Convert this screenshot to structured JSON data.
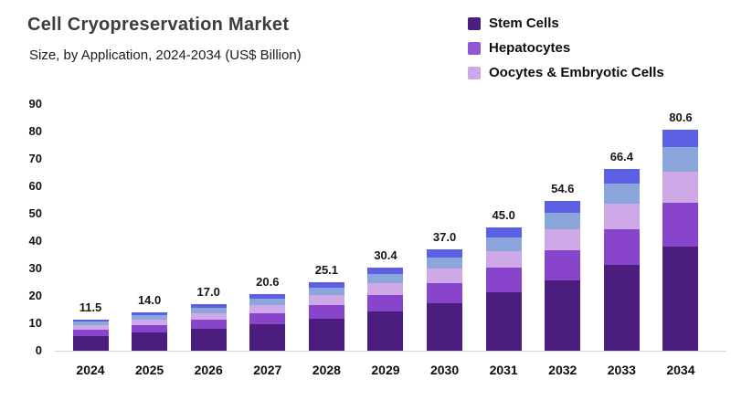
{
  "header": {
    "title": "Cell Cryopreservation Market",
    "subtitle": "Size, by Application, 2024-2034 (US$ Billion)"
  },
  "legend": [
    {
      "label": "Stem Cells",
      "color": "#4a1d7f"
    },
    {
      "label": "Hepatocytes",
      "color": "#9257d2"
    },
    {
      "label": "Oocytes & Embryotic Cells",
      "color": "#cfa8e8"
    }
  ],
  "colors": {
    "background": "#ffffff",
    "title_text": "#3e3c40",
    "label_text": "#111111",
    "baseline": "#d5d5d5"
  },
  "chart_data": {
    "type": "bar",
    "stacked": true,
    "title": "Cell Cryopreservation Market",
    "subtitle": "Size, by Application, 2024-2034 (US$ Billion)",
    "xlabel": "",
    "ylabel": "",
    "ylim": [
      0,
      90
    ],
    "yticks": [
      0,
      10,
      20,
      30,
      40,
      50,
      60,
      70,
      80,
      90
    ],
    "grid": false,
    "legend_position": "top-right",
    "categories": [
      "2024",
      "2025",
      "2026",
      "2027",
      "2028",
      "2029",
      "2030",
      "2031",
      "2032",
      "2033",
      "2034"
    ],
    "totals": [
      11.5,
      14.0,
      17.0,
      20.6,
      25.1,
      30.4,
      37.0,
      45.0,
      54.6,
      66.4,
      80.6
    ],
    "bar_total_labels": [
      "11.5",
      "14.0",
      "17.0",
      "20.6",
      "25.1",
      "30.4",
      "37.0",
      "45.0",
      "54.6",
      "66.4",
      "80.6"
    ],
    "series": [
      {
        "name": "Stem Cells",
        "color": "#4a1d7f",
        "values": [
          5.4,
          6.6,
          8.0,
          9.7,
          11.8,
          14.3,
          17.4,
          21.2,
          25.7,
          31.2,
          37.9
        ]
      },
      {
        "name": "Hepatocytes",
        "color": "#8944cc",
        "values": [
          2.3,
          2.8,
          3.4,
          4.1,
          5.0,
          6.1,
          7.4,
          9.0,
          10.9,
          13.3,
          16.1
        ]
      },
      {
        "name": "Oocytes & Embryotic Cells",
        "color": "#cfa8e8",
        "values": [
          1.6,
          2.0,
          2.4,
          2.9,
          3.5,
          4.3,
          5.2,
          6.3,
          7.6,
          9.3,
          11.3
        ]
      },
      {
        "name": "",
        "color": "#8ba6da",
        "values": [
          1.3,
          1.5,
          1.9,
          2.3,
          2.8,
          3.3,
          4.1,
          5.0,
          6.0,
          7.3,
          8.9
        ]
      },
      {
        "name": "",
        "color": "#5c60e2",
        "values": [
          0.9,
          1.1,
          1.3,
          1.6,
          2.0,
          2.4,
          2.9,
          3.5,
          4.4,
          5.3,
          6.4
        ]
      }
    ]
  }
}
